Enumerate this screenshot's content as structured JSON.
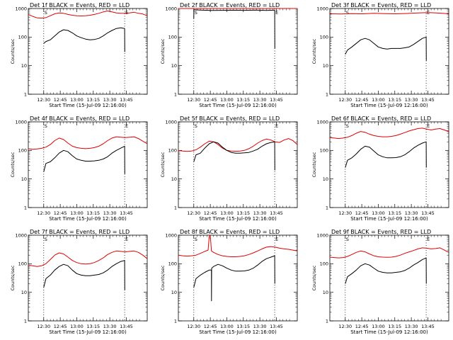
{
  "chart_data": [
    {
      "type": "line",
      "title": "Det 1f BLACK = Events, RED = LLD",
      "ylabel": "Counts/sec",
      "xlabel": "Start Time (15-Jul-09 12:16:00)",
      "x_ticks": [
        "12:30",
        "12:45",
        "13:00",
        "13:15",
        "13:30",
        "13:45"
      ],
      "ylim": [
        1,
        1000
      ],
      "yscale": "log",
      "markers": [
        "S",
        "E"
      ],
      "series": [
        {
          "color": "red",
          "t": [
            0,
            4,
            8,
            12,
            16,
            20,
            24,
            28,
            32,
            36,
            40,
            44,
            48,
            52,
            56,
            60,
            64,
            68,
            72,
            76,
            80,
            84,
            88,
            92,
            96,
            100,
            104,
            108
          ],
          "v": [
            620,
            530,
            470,
            460,
            480,
            560,
            650,
            700,
            680,
            620,
            580,
            560,
            550,
            560,
            580,
            620,
            680,
            760,
            820,
            760,
            700,
            680,
            680,
            700,
            740,
            680,
            640,
            560
          ]
        },
        {
          "color": "black",
          "t": [
            14,
            16,
            20,
            24,
            28,
            32,
            36,
            40,
            44,
            48,
            52,
            56,
            60,
            64,
            68,
            72,
            76,
            80,
            84,
            87.5,
            87.6
          ],
          "v": [
            60,
            70,
            80,
            110,
            150,
            180,
            170,
            140,
            110,
            95,
            85,
            80,
            82,
            90,
            110,
            140,
            170,
            200,
            210,
            200,
            30
          ]
        }
      ]
    },
    {
      "type": "line",
      "title": "Det 2f BLACK = Events, RED = LLD",
      "ylabel": "Counts/sec",
      "xlabel": "Start Time (15-Jul-09 12:16:00)",
      "x_ticks": [
        "12:30",
        "12:45",
        "13:00",
        "13:15",
        "13:30",
        "13:45"
      ],
      "ylim": [
        1,
        1000
      ],
      "yscale": "log",
      "markers": [
        "S",
        "E"
      ],
      "series": [
        {
          "color": "red",
          "t": [
            0,
            10,
            20,
            30,
            40,
            50,
            60,
            70,
            80,
            90,
            100,
            108
          ],
          "v": [
            1050,
            1080,
            1100,
            1120,
            1110,
            1150,
            1130,
            1120,
            1160,
            1170,
            1140,
            1100
          ]
        },
        {
          "color": "black",
          "t": [
            14,
            14.1,
            20,
            30,
            40,
            50,
            60,
            70,
            80,
            87.5,
            87.6
          ],
          "v": [
            450,
            900,
            880,
            850,
            860,
            870,
            860,
            880,
            850,
            880,
            40
          ]
        }
      ]
    },
    {
      "type": "line",
      "title": "Det 3f BLACK = Events, RED = LLD",
      "ylabel": "Counts/sec",
      "xlabel": "Start Time (15-Jul-09 12:16:00)",
      "x_ticks": [
        "12:30",
        "12:45",
        "13:00",
        "13:15",
        "13:30",
        "13:45"
      ],
      "ylim": [
        1,
        1000
      ],
      "yscale": "log",
      "markers": [
        "S",
        "E"
      ],
      "series": [
        {
          "color": "red",
          "t": [
            0,
            10,
            20,
            30,
            40,
            50,
            60,
            70,
            80,
            90,
            100,
            108
          ],
          "v": [
            650,
            640,
            660,
            650,
            680,
            660,
            650,
            670,
            700,
            720,
            690,
            650
          ]
        },
        {
          "color": "black",
          "t": [
            14,
            16,
            20,
            24,
            28,
            32,
            36,
            40,
            44,
            48,
            52,
            56,
            60,
            64,
            68,
            72,
            76,
            80,
            84,
            87.5,
            87.6
          ],
          "v": [
            25,
            35,
            45,
            60,
            80,
            90,
            80,
            60,
            45,
            40,
            38,
            40,
            40,
            40,
            42,
            45,
            55,
            70,
            90,
            100,
            15
          ]
        }
      ]
    },
    {
      "type": "line",
      "title": "Det 4f BLACK = Events, RED = LLD",
      "ylabel": "Counts/sec",
      "xlabel": "Start Time (15-Jul-09 12:16:00)",
      "x_ticks": [
        "12:30",
        "12:45",
        "13:00",
        "13:15",
        "13:30",
        "13:45"
      ],
      "ylim": [
        1,
        1000
      ],
      "yscale": "log",
      "markers": [
        "S",
        "E"
      ],
      "series": [
        {
          "color": "red",
          "t": [
            0,
            4,
            8,
            12,
            16,
            20,
            24,
            28,
            32,
            36,
            40,
            44,
            48,
            52,
            56,
            60,
            64,
            68,
            72,
            76,
            80,
            84,
            88,
            92,
            96,
            100,
            104,
            108
          ],
          "v": [
            115,
            110,
            112,
            118,
            130,
            160,
            220,
            270,
            240,
            180,
            140,
            125,
            118,
            115,
            118,
            125,
            140,
            170,
            220,
            270,
            300,
            290,
            280,
            290,
            300,
            260,
            210,
            170
          ]
        },
        {
          "color": "black",
          "t": [
            14,
            16,
            20,
            24,
            28,
            32,
            36,
            40,
            44,
            48,
            52,
            56,
            60,
            64,
            68,
            72,
            76,
            80,
            84,
            87.5,
            87.6
          ],
          "v": [
            18,
            35,
            40,
            55,
            80,
            100,
            90,
            65,
            50,
            45,
            42,
            42,
            43,
            45,
            50,
            60,
            80,
            100,
            120,
            140,
            15
          ]
        }
      ]
    },
    {
      "type": "line",
      "title": "Det 5f BLACK = Events, RED = LLD",
      "ylabel": "Counts/sec",
      "xlabel": "Start Time (15-Jul-09 12:16:00)",
      "x_ticks": [
        "12:30",
        "12:45",
        "13:00",
        "13:15",
        "13:30",
        "13:45"
      ],
      "ylim": [
        1,
        1000
      ],
      "yscale": "log",
      "markers": [
        "S",
        "E"
      ],
      "series": [
        {
          "color": "red",
          "t": [
            0,
            4,
            8,
            12,
            16,
            20,
            24,
            28,
            32,
            36,
            40,
            44,
            48,
            52,
            56,
            60,
            64,
            68,
            72,
            76,
            80,
            84,
            88,
            92,
            96,
            100,
            104,
            108
          ],
          "v": [
            100,
            95,
            92,
            95,
            105,
            130,
            170,
            210,
            200,
            160,
            120,
            100,
            95,
            93,
            95,
            100,
            115,
            140,
            180,
            220,
            250,
            230,
            200,
            190,
            230,
            260,
            220,
            160
          ]
        },
        {
          "color": "black",
          "t": [
            14,
            16,
            20,
            24,
            28,
            32,
            36,
            40,
            44,
            48,
            52,
            56,
            60,
            64,
            68,
            72,
            76,
            80,
            84,
            87.5,
            87.6
          ],
          "v": [
            40,
            70,
            80,
            120,
            170,
            200,
            180,
            130,
            100,
            85,
            80,
            80,
            82,
            85,
            95,
            110,
            140,
            170,
            190,
            200,
            20
          ]
        }
      ]
    },
    {
      "type": "line",
      "title": "Det 6f BLACK = Events, RED = LLD",
      "ylabel": "Counts/sec",
      "xlabel": "Start Time (15-Jul-09 12:16:00)",
      "x_ticks": [
        "12:30",
        "12:45",
        "13:00",
        "13:15",
        "13:30",
        "13:45"
      ],
      "ylim": [
        1,
        1000
      ],
      "yscale": "log",
      "markers": [
        "S",
        "E"
      ],
      "series": [
        {
          "color": "red",
          "t": [
            0,
            4,
            8,
            12,
            16,
            20,
            24,
            28,
            32,
            36,
            40,
            44,
            48,
            52,
            56,
            60,
            64,
            68,
            72,
            76,
            80,
            84,
            88,
            92,
            96,
            100,
            104,
            108
          ],
          "v": [
            280,
            270,
            260,
            270,
            290,
            330,
            400,
            460,
            430,
            370,
            330,
            310,
            300,
            300,
            310,
            330,
            370,
            420,
            480,
            530,
            580,
            600,
            560,
            520,
            560,
            580,
            520,
            450
          ]
        },
        {
          "color": "black",
          "t": [
            14,
            16,
            20,
            24,
            28,
            32,
            36,
            40,
            44,
            48,
            52,
            56,
            60,
            64,
            68,
            72,
            76,
            80,
            84,
            87.5,
            87.6
          ],
          "v": [
            25,
            45,
            55,
            75,
            110,
            140,
            130,
            95,
            70,
            60,
            55,
            55,
            56,
            60,
            70,
            90,
            120,
            150,
            180,
            200,
            25
          ]
        }
      ]
    },
    {
      "type": "line",
      "title": "Det 7f BLACK = Events, RED = LLD",
      "ylabel": "Counts/sec",
      "xlabel": "Start Time (15-Jul-09 12:16:00)",
      "x_ticks": [
        "12:30",
        "12:45",
        "13:00",
        "13:15",
        "13:30",
        "13:45"
      ],
      "ylim": [
        1,
        1000
      ],
      "yscale": "log",
      "markers": [
        "S",
        "E"
      ],
      "series": [
        {
          "color": "red",
          "t": [
            0,
            4,
            8,
            12,
            16,
            20,
            24,
            28,
            32,
            36,
            40,
            44,
            48,
            52,
            56,
            60,
            64,
            68,
            72,
            76,
            80,
            84,
            88,
            92,
            96,
            100,
            104,
            108
          ],
          "v": [
            90,
            85,
            80,
            85,
            100,
            140,
            200,
            240,
            220,
            170,
            130,
            110,
            100,
            98,
            100,
            110,
            130,
            160,
            210,
            250,
            280,
            270,
            260,
            270,
            280,
            250,
            200,
            150
          ]
        },
        {
          "color": "black",
          "t": [
            14,
            16,
            20,
            24,
            28,
            32,
            36,
            40,
            44,
            48,
            52,
            56,
            60,
            64,
            68,
            72,
            76,
            80,
            84,
            87.5,
            87.6
          ],
          "v": [
            15,
            30,
            40,
            60,
            80,
            95,
            85,
            60,
            45,
            40,
            38,
            38,
            40,
            42,
            48,
            60,
            80,
            100,
            120,
            130,
            12
          ]
        }
      ]
    },
    {
      "type": "line",
      "title": "Det 8f BLACK = Events, RED = LLD",
      "ylabel": "Counts/sec",
      "xlabel": "Start Time (15-Jul-09 12:16:00)",
      "x_ticks": [
        "12:30",
        "12:45",
        "13:00",
        "13:15",
        "13:30",
        "13:45"
      ],
      "ylim": [
        1,
        1000
      ],
      "yscale": "log",
      "markers": [
        "S",
        "E"
      ],
      "series": [
        {
          "color": "red",
          "t": [
            0,
            4,
            8,
            12,
            16,
            20,
            24,
            27,
            28,
            28.5,
            29,
            30,
            32,
            36,
            40,
            44,
            48,
            52,
            56,
            60,
            64,
            68,
            72,
            76,
            80,
            84,
            88,
            92,
            96,
            100,
            104,
            108
          ],
          "v": [
            200,
            190,
            185,
            190,
            200,
            230,
            270,
            300,
            900,
            1200,
            1200,
            280,
            250,
            210,
            190,
            180,
            175,
            175,
            180,
            190,
            210,
            240,
            280,
            330,
            380,
            400,
            380,
            350,
            330,
            320,
            300,
            280
          ]
        },
        {
          "color": "black",
          "t": [
            14,
            16,
            20,
            24,
            28,
            30,
            30.1,
            30.2,
            32,
            36,
            40,
            44,
            48,
            52,
            56,
            60,
            64,
            68,
            72,
            76,
            80,
            84,
            87.5,
            87.6
          ],
          "v": [
            15,
            30,
            40,
            50,
            60,
            60,
            5,
            70,
            80,
            95,
            85,
            70,
            60,
            55,
            55,
            56,
            60,
            70,
            90,
            120,
            150,
            170,
            190,
            20
          ]
        }
      ]
    },
    {
      "type": "line",
      "title": "Det 9f BLACK = Events, RED = LLD",
      "ylabel": "Counts/sec",
      "xlabel": "Start Time (15-Jul-09 12:16:00)",
      "x_ticks": [
        "12:30",
        "12:45",
        "13:00",
        "13:15",
        "13:30",
        "13:45"
      ],
      "ylim": [
        1,
        1000
      ],
      "yscale": "log",
      "markers": [
        "S",
        "E"
      ],
      "series": [
        {
          "color": "red",
          "t": [
            0,
            4,
            8,
            12,
            16,
            20,
            24,
            28,
            32,
            36,
            40,
            44,
            48,
            52,
            56,
            60,
            64,
            68,
            72,
            76,
            80,
            84,
            88,
            92,
            96,
            100,
            104,
            108
          ],
          "v": [
            170,
            165,
            160,
            165,
            180,
            210,
            250,
            280,
            260,
            220,
            190,
            175,
            170,
            168,
            170,
            180,
            200,
            230,
            260,
            290,
            330,
            360,
            350,
            330,
            340,
            360,
            300,
            250
          ]
        },
        {
          "color": "black",
          "t": [
            14,
            16,
            20,
            24,
            28,
            32,
            36,
            40,
            44,
            48,
            52,
            56,
            60,
            64,
            68,
            72,
            76,
            80,
            84,
            87.5,
            87.6
          ],
          "v": [
            20,
            35,
            45,
            60,
            85,
            100,
            90,
            70,
            55,
            50,
            48,
            48,
            50,
            52,
            58,
            70,
            90,
            110,
            140,
            160,
            20
          ]
        }
      ]
    }
  ]
}
